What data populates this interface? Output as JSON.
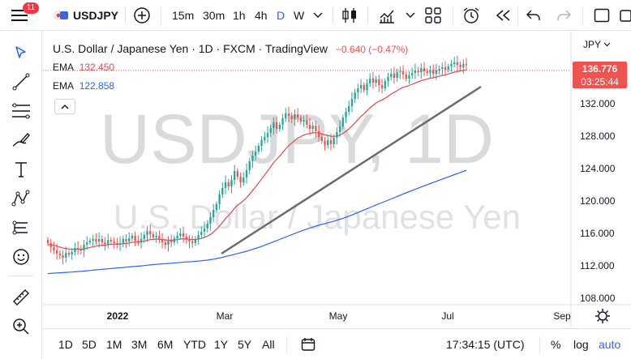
{
  "topbar": {
    "notifications": "11",
    "symbol": "USDJPY",
    "intervals": [
      "15m",
      "30m",
      "1h",
      "4h",
      "D",
      "W"
    ],
    "active_interval": "D"
  },
  "legend": {
    "title": "U.S. Dollar / Japanese Yen · 1D · FXCM · TradingView",
    "change": "−0.640 (−0.47%)",
    "ema1_label": "EMA",
    "ema1_value": "132.450",
    "ema2_label": "EMA",
    "ema2_value": "122.858"
  },
  "watermark": {
    "symbol": "USDJPY, 1D",
    "name": "U.S. Dollar / Japanese Yen"
  },
  "price_axis": {
    "currency": "JPY",
    "labels": [
      "132.000",
      "128.000",
      "124.000",
      "120.000",
      "116.000",
      "112.000",
      "108.000"
    ],
    "last_price": "136.776",
    "countdown": "03:25:44"
  },
  "time_axis": {
    "labels": [
      "2022",
      "Mar",
      "May",
      "Jul",
      "Sep"
    ]
  },
  "bottombar": {
    "ranges": [
      "1D",
      "5D",
      "1M",
      "3M",
      "6M",
      "YTD",
      "1Y",
      "5Y",
      "All"
    ],
    "clock": "17:34:15 (UTC)",
    "percent": "%",
    "log": "log",
    "auto": "auto"
  },
  "colors": {
    "up": "#26a69a",
    "down": "#ef5350",
    "ema_fast": "#e8444a",
    "ema_slow": "#2962ff",
    "trendline": "#6b6b6b",
    "accent": "#2962ff"
  },
  "chart_data": {
    "type": "candlestick",
    "symbol": "USDJPY",
    "interval": "1D",
    "y_range": [
      107.5,
      136.9
    ],
    "price_ticks": [
      132,
      128,
      124,
      120,
      116,
      112,
      108
    ],
    "closes": [
      114.8,
      114.3,
      113.9,
      113.5,
      113.3,
      113.0,
      113.6,
      113.4,
      113.7,
      114.2,
      114.1,
      113.9,
      114.6,
      114.9,
      115.1,
      115.3,
      115.0,
      115.3,
      114.9,
      114.7,
      115.2,
      115.0,
      114.8,
      114.6,
      114.8,
      115.3,
      115.0,
      115.4,
      115.7,
      115.1,
      114.9,
      115.3,
      115.8,
      116.3,
      115.9,
      115.5,
      115.7,
      115.2,
      114.9,
      114.6,
      115.1,
      114.9,
      115.4,
      115.7,
      116.0,
      115.6,
      115.2,
      115.0,
      114.8,
      115.3,
      115.8,
      116.2,
      116.6,
      117.2,
      118.0,
      118.9,
      119.6,
      120.8,
      121.6,
      122.3,
      121.8,
      122.6,
      123.7,
      123.0,
      122.3,
      122.9,
      123.8,
      124.9,
      125.6,
      126.1,
      126.8,
      127.5,
      127.9,
      128.4,
      129.0,
      129.7,
      128.9,
      129.4,
      130.2,
      130.8,
      130.5,
      130.1,
      130.7,
      130.3,
      129.8,
      130.0,
      129.4,
      128.9,
      129.3,
      128.6,
      127.9,
      127.4,
      126.9,
      127.5,
      127.0,
      127.8,
      128.5,
      129.2,
      130.3,
      131.0,
      131.7,
      132.6,
      133.4,
      133.9,
      134.3,
      133.7,
      134.5,
      135.1,
      134.6,
      135.0,
      134.3,
      133.9,
      134.8,
      135.3,
      135.7,
      135.2,
      135.9,
      136.0,
      135.6,
      135.1,
      135.5,
      135.8,
      136.1,
      135.9,
      136.4,
      136.0,
      135.8,
      136.2,
      135.7,
      136.1,
      136.3,
      136.5,
      136.2,
      136.6,
      136.9,
      137.1,
      136.8,
      136.5,
      136.9,
      136.776
    ],
    "ema_fast": {
      "label": "EMA",
      "last": 132.45
    },
    "ema_slow": {
      "label": "EMA",
      "last": 122.858
    }
  }
}
